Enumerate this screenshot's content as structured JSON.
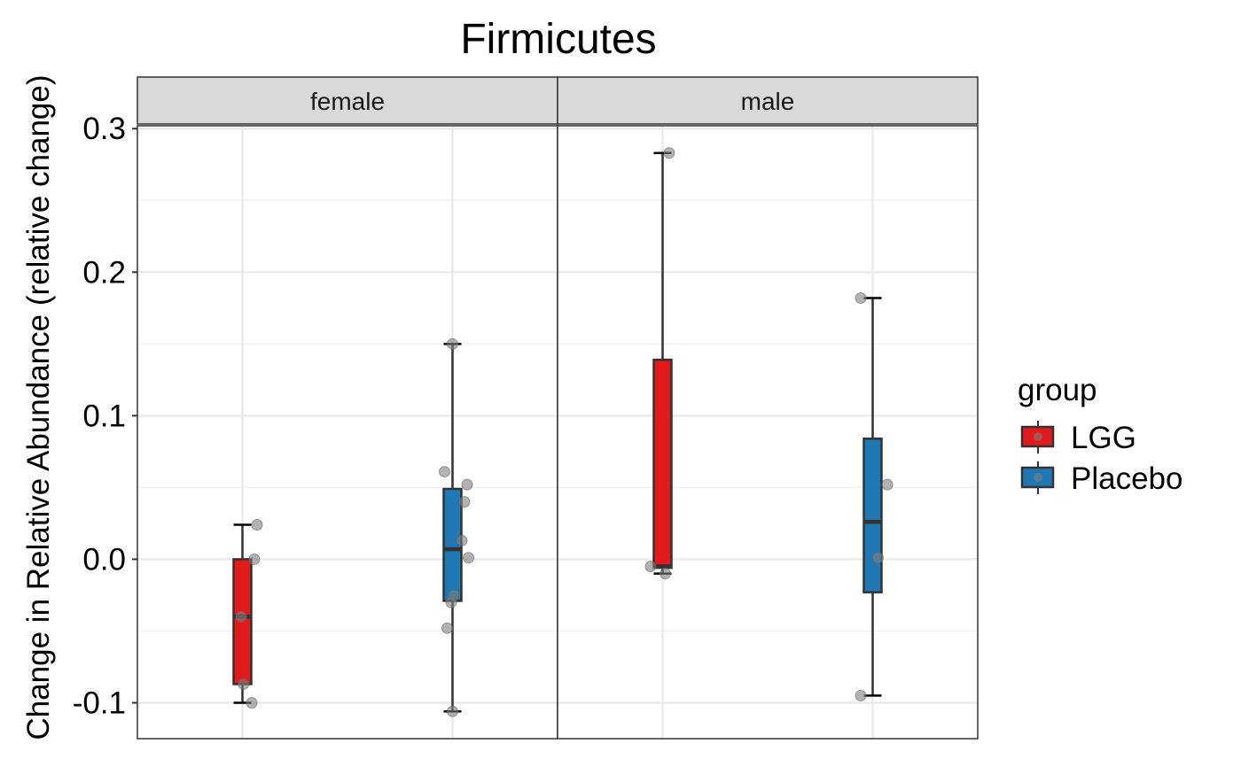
{
  "chart_data": {
    "type": "box",
    "title": "Firmicutes",
    "ylabel": "Change in Relative Abundance (relative change)",
    "xlabel": "",
    "ylim": [
      -0.125,
      0.302
    ],
    "y_ticks": [
      "-0.1",
      "0.0",
      "0.1",
      "0.2",
      "0.3"
    ],
    "y_tick_values": [
      -0.1,
      0.0,
      0.1,
      0.2,
      0.3
    ],
    "grid": true,
    "legend": {
      "title": "group",
      "position": "right",
      "entries": [
        "LGG",
        "Placebo"
      ]
    },
    "colors": {
      "LGG": "#e31a1c",
      "Placebo": "#1f78b4",
      "points": "#7f7f7f"
    },
    "panels": [
      {
        "label": "female",
        "boxes": [
          {
            "group": "LGG",
            "min": -0.1,
            "q1": -0.087,
            "median": -0.04,
            "q3": 0.0,
            "max": 0.024,
            "points": [
              [
                0.04,
                -0.087
              ],
              [
                0.35,
                -0.1
              ],
              [
                0.45,
                0.0
              ],
              [
                0.55,
                0.024
              ],
              [
                -0.05,
                -0.04
              ]
            ]
          },
          {
            "group": "Placebo",
            "min": -0.106,
            "q1": -0.029,
            "median": 0.007,
            "q3": 0.049,
            "max": 0.15,
            "points": [
              [
                -0.3,
                0.061
              ],
              [
                0.55,
                0.052
              ],
              [
                0.45,
                0.04
              ],
              [
                0.35,
                0.013
              ],
              [
                0.6,
                0.001
              ],
              [
                0.0,
                0.15
              ],
              [
                0.05,
                -0.025
              ],
              [
                -0.05,
                -0.03
              ],
              [
                -0.2,
                -0.048
              ],
              [
                0.0,
                -0.106
              ]
            ]
          }
        ]
      },
      {
        "label": "male",
        "boxes": [
          {
            "group": "LGG",
            "min": -0.01,
            "q1": -0.006,
            "median": -0.005,
            "q3": 0.139,
            "max": 0.283,
            "points": [
              [
                -0.45,
                -0.005
              ],
              [
                0.1,
                -0.01
              ],
              [
                0.25,
                0.283
              ]
            ]
          },
          {
            "group": "Placebo",
            "min": -0.095,
            "q1": -0.023,
            "median": 0.026,
            "q3": 0.084,
            "max": 0.182,
            "points": [
              [
                -0.45,
                0.182
              ],
              [
                0.55,
                0.052
              ],
              [
                0.2,
                0.001
              ],
              [
                -0.45,
                -0.095
              ]
            ]
          }
        ]
      }
    ]
  }
}
